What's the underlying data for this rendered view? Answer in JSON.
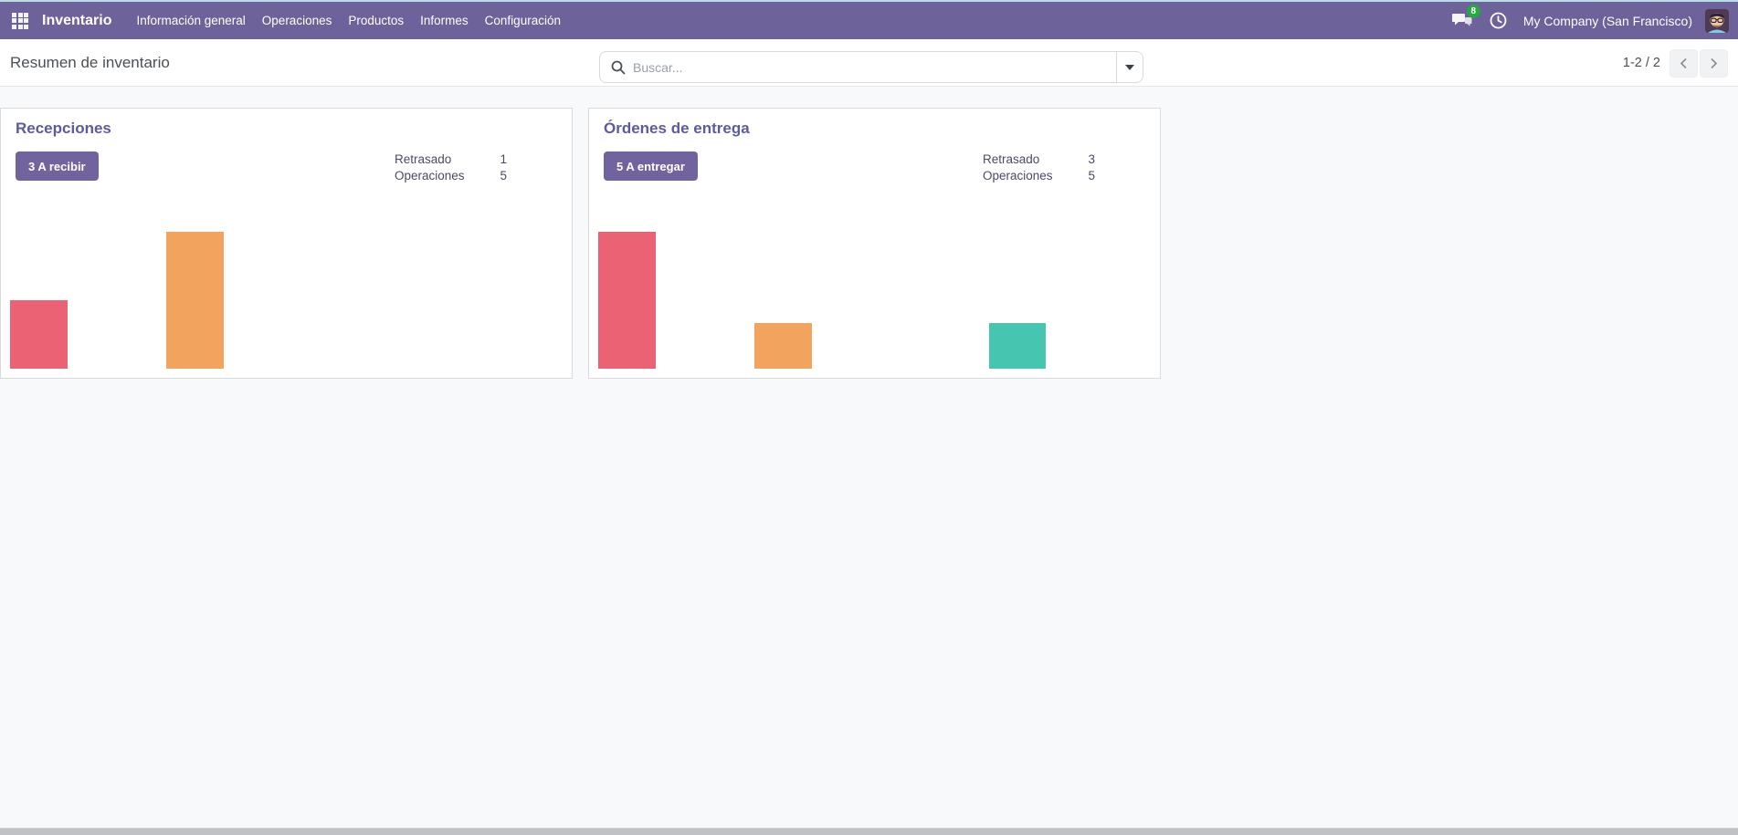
{
  "app": {
    "name": "Inventario",
    "menu": [
      "Información general",
      "Operaciones",
      "Productos",
      "Informes",
      "Configuración"
    ],
    "messages_badge": "8",
    "company_name": "My Company (San Francisco)"
  },
  "control_panel": {
    "breadcrumb": "Resumen de inventario",
    "search": {
      "placeholder": "Buscar..."
    },
    "pager": {
      "range": "1-2 / 2"
    }
  },
  "cards": [
    {
      "title": "Recepciones",
      "action_button": "3 A recibir",
      "stats": [
        {
          "label": "Retrasado",
          "value": "1"
        },
        {
          "label": "Operaciones",
          "value": "5"
        }
      ]
    },
    {
      "title": "Órdenes de entrega",
      "action_button": "5 A entregar",
      "stats": [
        {
          "label": "Retrasado",
          "value": "3"
        },
        {
          "label": "Operaciones",
          "value": "5"
        }
      ]
    }
  ],
  "chart_data": [
    {
      "type": "bar",
      "title": "Recepciones",
      "slots": 7,
      "bars": [
        {
          "slot": 0,
          "value": 1,
          "color": "#eb6275"
        },
        {
          "slot": 2,
          "value": 2,
          "color": "#f2a45f"
        }
      ],
      "ylim": [
        0,
        2
      ],
      "grid": false,
      "axes_visible": false,
      "legend": "none"
    },
    {
      "type": "bar",
      "title": "Órdenes de entrega",
      "slots": 7,
      "bars": [
        {
          "slot": 0,
          "value": 3,
          "color": "#eb6275"
        },
        {
          "slot": 2,
          "value": 1,
          "color": "#f2a45f"
        },
        {
          "slot": 5,
          "value": 1,
          "color": "#46c5b1"
        }
      ],
      "ylim": [
        0,
        3
      ],
      "grid": false,
      "axes_visible": false,
      "legend": "none"
    }
  ],
  "colors": {
    "navbar_bg": "#6d6299",
    "primary_button": "#71639e",
    "card_title": "#5d5a9d",
    "badge_green": "#28a745",
    "bar_late_red": "#eb6275",
    "bar_today_orange": "#f2a45f",
    "bar_future_teal": "#46c5b1",
    "page_bg": "#f8f9fa"
  }
}
